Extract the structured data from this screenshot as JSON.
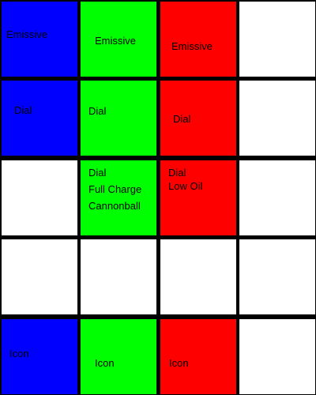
{
  "colors": {
    "blue": "#0000ff",
    "green": "#00ff00",
    "red": "#ff0000",
    "white": "#ffffff",
    "border": "#000000"
  },
  "rows": [
    {
      "name": "emissive",
      "cells": [
        {
          "color": "#0000ff",
          "lines": [
            "Emissive"
          ]
        },
        {
          "color": "#00ff00",
          "lines": [
            "Emissive"
          ]
        },
        {
          "color": "#ff0000",
          "lines": [
            "Emissive"
          ]
        },
        {
          "color": "#ffffff",
          "lines": []
        }
      ]
    },
    {
      "name": "dial",
      "cells": [
        {
          "color": "#0000ff",
          "lines": [
            "Dial"
          ]
        },
        {
          "color": "#00ff00",
          "lines": [
            "Dial"
          ]
        },
        {
          "color": "#ff0000",
          "lines": [
            "Dial"
          ]
        },
        {
          "color": "#ffffff",
          "lines": []
        }
      ]
    },
    {
      "name": "dial-status",
      "cells": [
        {
          "color": "#ffffff",
          "lines": []
        },
        {
          "color": "#00ff00",
          "lines": [
            "Dial",
            "Full Charge",
            "Cannonball"
          ]
        },
        {
          "color": "#ff0000",
          "lines": [
            "Dial",
            "Low Oil"
          ]
        },
        {
          "color": "#ffffff",
          "lines": []
        }
      ]
    },
    {
      "name": "empty",
      "cells": [
        {
          "color": "#ffffff",
          "lines": []
        },
        {
          "color": "#ffffff",
          "lines": []
        },
        {
          "color": "#ffffff",
          "lines": []
        },
        {
          "color": "#ffffff",
          "lines": []
        }
      ]
    },
    {
      "name": "icon",
      "cells": [
        {
          "color": "#0000ff",
          "lines": [
            "Icon"
          ]
        },
        {
          "color": "#00ff00",
          "lines": [
            "Icon"
          ]
        },
        {
          "color": "#ff0000",
          "lines": [
            "Icon"
          ]
        },
        {
          "color": "#ffffff",
          "lines": []
        }
      ]
    }
  ]
}
